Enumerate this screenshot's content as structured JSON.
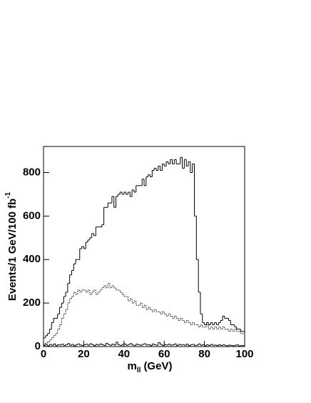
{
  "chart_data": {
    "type": "histogram",
    "xlabel": "m",
    "xlabel_sub": "ll",
    "xlabel_unit": "(GeV)",
    "ylabel": "Events/1 GeV/100 fb",
    "ylabel_sup": "-1",
    "xlim": [
      0,
      100
    ],
    "ylim": [
      0,
      920
    ],
    "xticks": [
      0,
      20,
      40,
      60,
      80,
      100
    ],
    "yticks": [
      0,
      200,
      400,
      600,
      800
    ],
    "bins": [
      0,
      1,
      2,
      3,
      4,
      5,
      6,
      7,
      8,
      9,
      10,
      11,
      12,
      13,
      14,
      15,
      16,
      17,
      18,
      19,
      20,
      21,
      22,
      23,
      24,
      25,
      26,
      27,
      28,
      29,
      30,
      31,
      32,
      33,
      34,
      35,
      36,
      37,
      38,
      39,
      40,
      41,
      42,
      43,
      44,
      45,
      46,
      47,
      48,
      49,
      50,
      51,
      52,
      53,
      54,
      55,
      56,
      57,
      58,
      59,
      60,
      61,
      62,
      63,
      64,
      65,
      66,
      67,
      68,
      69,
      70,
      71,
      72,
      73,
      74,
      75,
      76,
      77,
      78,
      79,
      80,
      81,
      82,
      83,
      84,
      85,
      86,
      87,
      88,
      89,
      90,
      91,
      92,
      93,
      94,
      95,
      96,
      97,
      98,
      99,
      100
    ],
    "series": [
      {
        "color": "#000000",
        "style": "solid",
        "values": [
          40,
          50,
          60,
          80,
          110,
          130,
          130,
          150,
          180,
          200,
          230,
          250,
          290,
          330,
          350,
          380,
          400,
          400,
          450,
          460,
          450,
          480,
          490,
          500,
          520,
          510,
          550,
          550,
          550,
          560,
          640,
          640,
          660,
          660,
          690,
          640,
          690,
          700,
          710,
          700,
          710,
          700,
          710,
          690,
          720,
          710,
          740,
          740,
          740,
          770,
          740,
          780,
          790,
          780,
          810,
          820,
          810,
          830,
          810,
          840,
          830,
          850,
          840,
          860,
          840,
          860,
          840,
          840,
          870,
          820,
          860,
          830,
          850,
          800,
          840,
          600,
          400,
          250,
          150,
          110,
          100,
          110,
          100,
          110,
          100,
          110,
          100,
          110,
          120,
          140,
          130,
          130,
          120,
          100,
          100,
          90,
          80,
          80,
          70,
          70
        ]
      },
      {
        "color": "#000000",
        "style": "dotted",
        "values": [
          10,
          15,
          20,
          30,
          40,
          50,
          60,
          80,
          100,
          130,
          150,
          170,
          200,
          220,
          230,
          250,
          240,
          260,
          250,
          260,
          260,
          250,
          260,
          240,
          250,
          260,
          240,
          250,
          260,
          270,
          280,
          270,
          290,
          270,
          280,
          270,
          260,
          260,
          250,
          240,
          230,
          230,
          210,
          220,
          200,
          210,
          190,
          190,
          200,
          180,
          190,
          170,
          180,
          170,
          160,
          170,
          160,
          160,
          150,
          160,
          150,
          140,
          150,
          140,
          130,
          140,
          130,
          120,
          130,
          120,
          110,
          120,
          110,
          100,
          110,
          100,
          100,
          90,
          100,
          90,
          90,
          100,
          80,
          90,
          80,
          90,
          80,
          90,
          80,
          90,
          80,
          80,
          70,
          80,
          70,
          80,
          70,
          70,
          60,
          60
        ]
      },
      {
        "color": "#000000",
        "style": "solid",
        "values": [
          5,
          8,
          3,
          10,
          6,
          12,
          4,
          9,
          7,
          11,
          5,
          8,
          14,
          6,
          10,
          3,
          9,
          12,
          7,
          5,
          8,
          11,
          6,
          13,
          9,
          4,
          10,
          7,
          12,
          8,
          5,
          15,
          9,
          6,
          11,
          7,
          20,
          8,
          5,
          10,
          12,
          6,
          9,
          14,
          7,
          5,
          11,
          8,
          6,
          10,
          13,
          7,
          9,
          4,
          12,
          8,
          6,
          18,
          10,
          5,
          9,
          7,
          11,
          6,
          8,
          12,
          5,
          10,
          7,
          9,
          6,
          11,
          4,
          8,
          10,
          5,
          7,
          12,
          6,
          9,
          3,
          8,
          5,
          10,
          6,
          7,
          4,
          9,
          5,
          8,
          6,
          3,
          7,
          5,
          4,
          6,
          8,
          3,
          5,
          4
        ]
      }
    ]
  }
}
